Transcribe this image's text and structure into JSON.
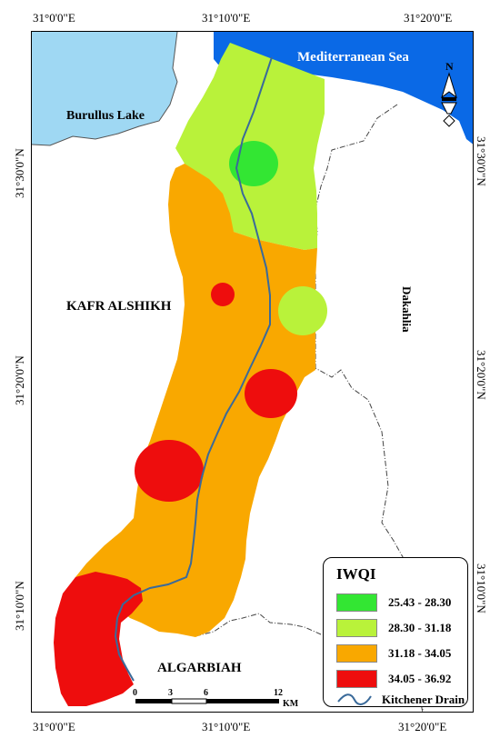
{
  "coordinates": {
    "top": [
      "31°0'0\"E",
      "31°10'0\"E",
      "31°20'0\"E"
    ],
    "bottom": [
      "31°0'0\"E",
      "31°10'0\"E",
      "31°20'0\"E"
    ],
    "left": [
      "31°30'0\"N",
      "31°20'0\"N",
      "31°10'0\"N"
    ],
    "right": [
      "31°30'0\"N",
      "31°20'0\"N",
      "31°10'0\"N"
    ]
  },
  "labels": {
    "sea": "Mediterranean Sea",
    "lake": "Burullus Lake",
    "kafr": "KAFR ALSHIKH",
    "dakahlia": "Dakahlia",
    "algarbiah": "ALGARBIAH",
    "north": "N"
  },
  "legend": {
    "title": "IWQI",
    "classes": [
      {
        "label": "25.43 - 28.30",
        "color": "#33e633"
      },
      {
        "label": "28.30 - 31.18",
        "color": "#b9f23a"
      },
      {
        "label": "31.18 - 34.05",
        "color": "#f9a800"
      },
      {
        "label": "34.05 - 36.92",
        "color": "#ee0d0d"
      }
    ],
    "drain_label": "Kitchener Drain"
  },
  "scale_bar": {
    "ticks": [
      "0",
      "3",
      "6",
      "12"
    ],
    "unit": "KM"
  },
  "colors": {
    "sea": "#0a69e6",
    "lake": "#9fd8f3",
    "drain": "#3a6a9a"
  }
}
